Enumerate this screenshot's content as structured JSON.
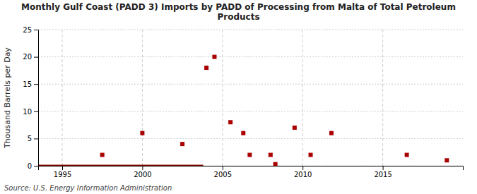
{
  "chart_data": {
    "type": "scatter",
    "title": "Monthly Gulf Coast (PADD 3) Imports by PADD of Processing from Malta of Total Petroleum\nProducts",
    "y_label": "Thousand Barrels per Day",
    "source": "Source: U.S. Energy Information Administration",
    "xlim": [
      1993.5,
      2020
    ],
    "ylim": [
      0,
      25
    ],
    "xticks": [
      1995,
      2000,
      2005,
      2010,
      2015
    ],
    "yticks": [
      0,
      5,
      10,
      15,
      20,
      25
    ],
    "grid": true,
    "series": [
      {
        "type": "line",
        "color": "#880000",
        "x": [
          1993.5,
          2003.8
        ],
        "values": [
          0,
          0
        ]
      },
      {
        "type": "scatter",
        "color": "#aa0000",
        "x": [
          1997.5,
          2000.0,
          2002.5,
          2004.0,
          2004.5,
          2005.5,
          2006.3,
          2006.7,
          2008.0,
          2008.3,
          2009.5,
          2010.5,
          2011.8,
          2016.5,
          2019.0
        ],
        "values": [
          2,
          6,
          4,
          18,
          20,
          8,
          6,
          2,
          2,
          0.3,
          7,
          2,
          6,
          2,
          1
        ]
      }
    ]
  }
}
